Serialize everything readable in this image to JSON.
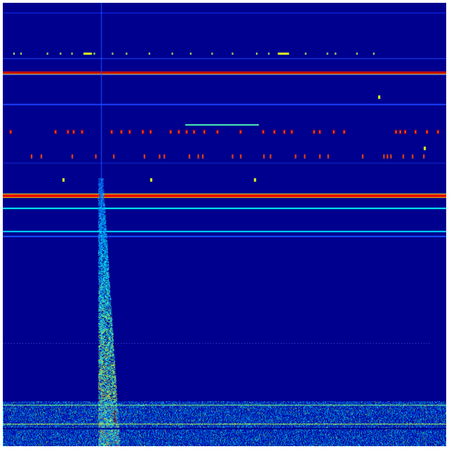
{
  "colormap": {
    "name": "jet",
    "background": "#00008e",
    "low": "#0000ff",
    "mid_low": "#00bfff",
    "mid": "#7fff7f",
    "mid_high": "#ffff00",
    "high": "#ff0000"
  }
}
